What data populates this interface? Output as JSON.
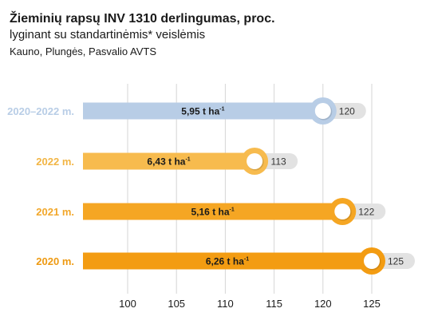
{
  "header": {
    "title": "Žieminių rapsų INV 1310 derlingumas, proc.",
    "subtitle": "lyginant su standartinėmis* veislėmis",
    "source": "Kauno, Plungės, Pasvalio AVTS"
  },
  "chart_data": {
    "type": "bar",
    "orientation": "horizontal",
    "title": "Žieminių rapsų INV 1310 derlingumas, proc.",
    "xlim": [
      100,
      125
    ],
    "xticks": [
      100,
      105,
      110,
      115,
      120,
      125
    ],
    "grid": true,
    "categories": [
      "2020–2022 m.",
      "2022 m.",
      "2021 m.",
      "2020 m."
    ],
    "values": [
      120,
      113,
      122,
      125
    ],
    "value_labels": [
      "120",
      "113",
      "122",
      "125"
    ],
    "yield_labels": [
      "5,95 t ha",
      "6,43 t ha",
      "5,16 t ha",
      "6,26 t ha"
    ],
    "unit_superscript": "-1",
    "colors": [
      "#b8cde6",
      "#f7bb4e",
      "#f5a623",
      "#f39c12"
    ],
    "knob_colors": [
      "#b8cde6",
      "#f7bb4e",
      "#f5a623",
      "#f39c12"
    ],
    "category_colors": [
      "#b8cde6",
      "#f2b544",
      "#f2a72a",
      "#ee9a12"
    ],
    "pill_color": "#e2e2e2"
  }
}
